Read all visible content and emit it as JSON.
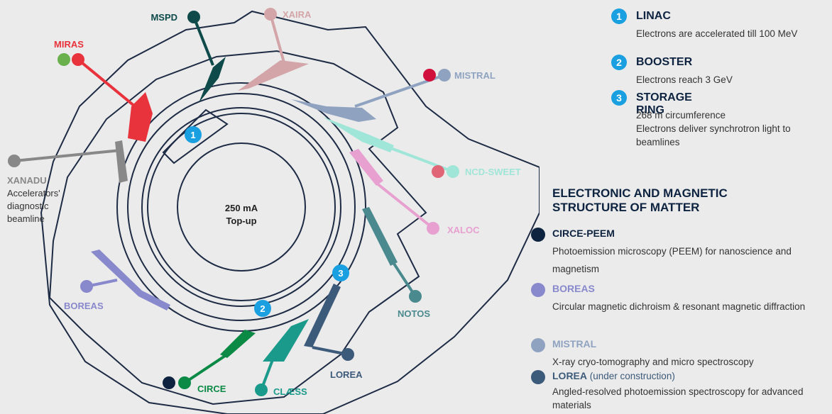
{
  "center": {
    "current": "250 mA",
    "mode": "Top-up"
  },
  "markers": [
    "1",
    "2",
    "3"
  ],
  "beamlines": [
    {
      "name": "MSPD"
    },
    {
      "name": "XAIRA"
    },
    {
      "name": "MIRAS"
    },
    {
      "name": "MISTRAL"
    },
    {
      "name": "XANADU",
      "description": [
        "Accelerators'",
        "diagnostic",
        "beamline"
      ]
    },
    {
      "name": "NCD-SWEET"
    },
    {
      "name": "XALOC"
    },
    {
      "name": "BOREAS"
    },
    {
      "name": "NOTOS"
    },
    {
      "name": "LOREA"
    },
    {
      "name": "CIRCE"
    },
    {
      "name": "CLÆSS"
    }
  ],
  "accelerators": [
    {
      "number": "1",
      "title": "LINAC",
      "lines": [
        "Electrons are accelerated till 100 MeV"
      ]
    },
    {
      "number": "2",
      "title": "BOOSTER",
      "lines": [
        "Electrons reach 3 GeV"
      ]
    },
    {
      "number": "3",
      "title": "STORAGE RING",
      "lines": [
        "268 m circumference",
        "Electrons deliver synchrotron light to beamlines"
      ]
    }
  ],
  "section": {
    "title": "ELECTRONIC AND MAGNETIC STRUCTURE OF MATTER",
    "items": [
      {
        "name": "CIRCE-PEEM",
        "description": "Photoemission microscopy (PEEM) for nanoscience and magnetism"
      },
      {
        "name": "BOREAS",
        "description": "Circular magnetic dichroism & resonant magnetic diffraction"
      },
      {
        "name": "MISTRAL",
        "description": "X-ray cryo-tomography and micro spectroscopy"
      },
      {
        "name": "LOREA",
        "note": "(under construction)",
        "description": "Angled-resolved photoemission spectroscopy for advanced materials"
      }
    ]
  }
}
